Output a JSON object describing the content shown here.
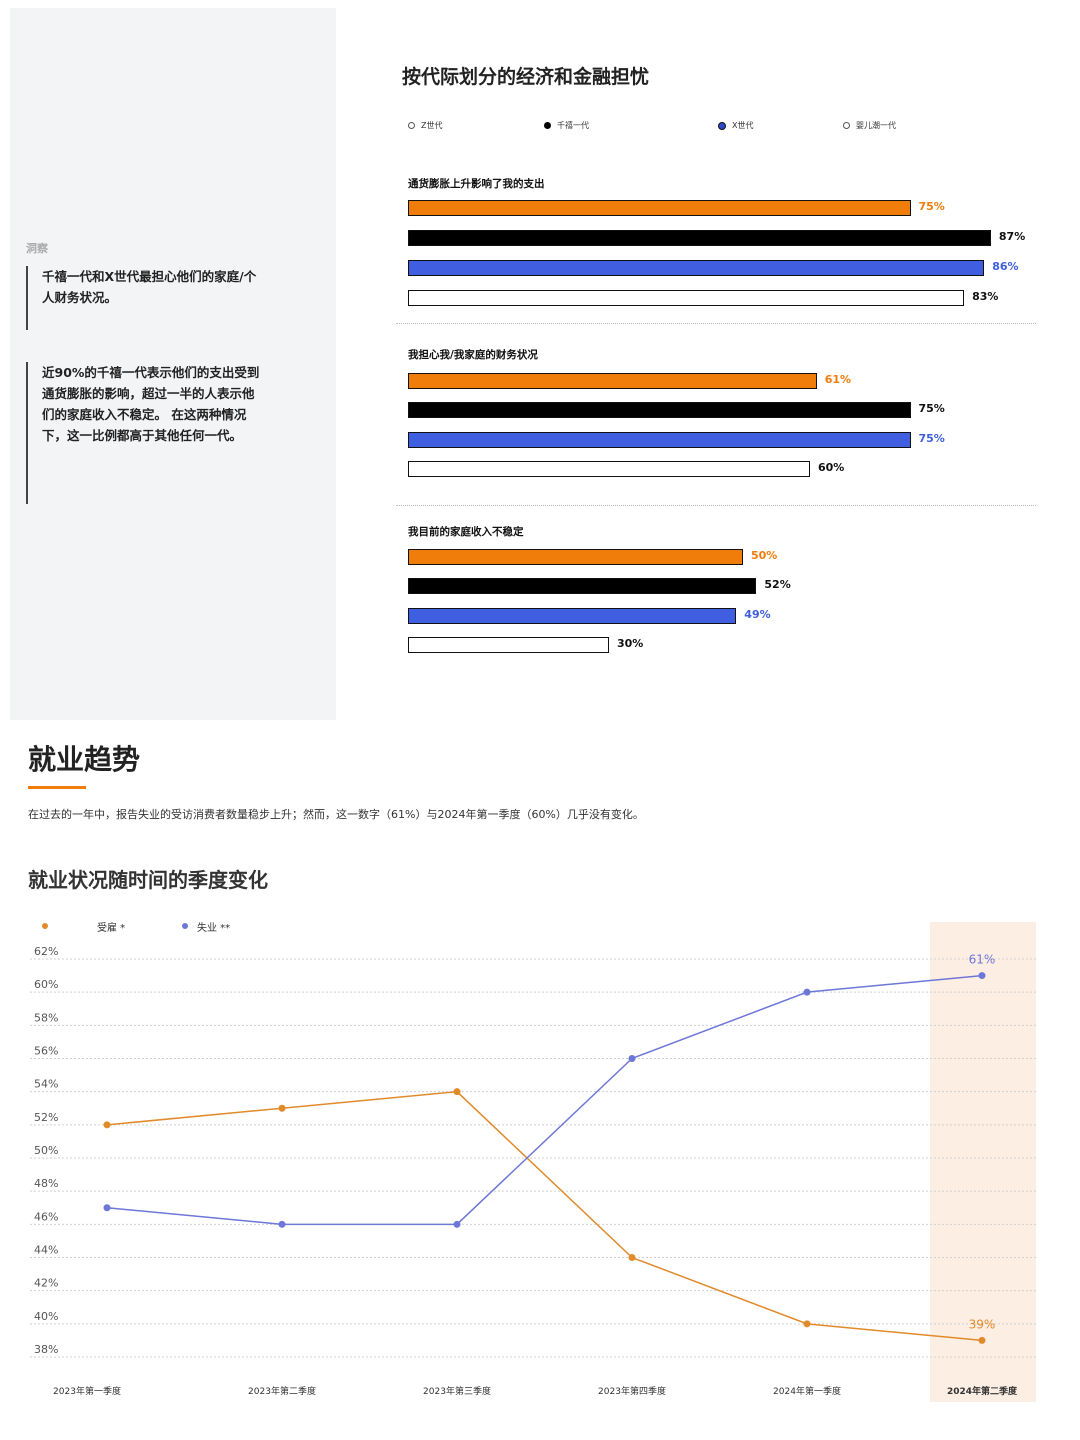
{
  "colors": {
    "gen_z": "#f07c0a",
    "millennial": "#000000",
    "gen_x": "#3f5fe0",
    "boomer": "#ffffff",
    "employed": "#e08a2a",
    "unemployed": "#6d77d8",
    "highlight": "#fdeee3"
  },
  "sidebar": {
    "label": "洞察",
    "quote1": "千禧一代和X世代最担心他们的家庭/个人财务状况。",
    "quote2": "近90%的千禧一代表示他们的支出受到通货膨胀的影响，超过一半的人表示他们的家庭收入不稳定。 在这两种情况下，这一比例都高于其他任何一代。"
  },
  "section": {
    "title": "就业趋势",
    "description": "在过去的一年中，报告失业的受访消费者数量稳步上升；然而，这一数字（61%）与2024年第一季度（60%）几乎没有变化。"
  },
  "chart_data": [
    {
      "type": "bar",
      "title": "按代际划分的经济和金融担忧",
      "legend": [
        "Z世代",
        "千禧一代",
        "X世代",
        "婴儿潮一代"
      ],
      "categories": [
        "通货膨胀上升影响了我的支出",
        "我担心我/我家庭的财务状况",
        "我目前的家庭收入不稳定"
      ],
      "series": [
        {
          "name": "Z世代",
          "values": [
            75,
            61,
            50
          ],
          "labels": [
            "75%",
            "61%",
            "50%"
          ]
        },
        {
          "name": "千禧一代",
          "values": [
            87,
            75,
            52
          ],
          "labels": [
            "87%",
            "75%",
            "52%"
          ]
        },
        {
          "name": "X世代",
          "values": [
            86,
            75,
            49
          ],
          "labels": [
            "86%",
            "75%",
            "49%"
          ]
        },
        {
          "name": "婴儿潮一代",
          "values": [
            83,
            60,
            30
          ],
          "labels": [
            "83%",
            "60%",
            "30%"
          ]
        }
      ]
    },
    {
      "type": "line",
      "title": "就业状况随时间的季度变化",
      "legend": [
        "受雇 *",
        "失业 **"
      ],
      "categories": [
        "2023年第一季度",
        "2023年第二季度",
        "2023年第三季度",
        "2023年第四季度",
        "2024年第一季度",
        "2024年第二季度"
      ],
      "series": [
        {
          "name": "受雇 *",
          "values": [
            52,
            53,
            54,
            44,
            40,
            39
          ]
        },
        {
          "name": "失业 **",
          "values": [
            47,
            46,
            46,
            56,
            60,
            61
          ]
        }
      ],
      "annotations": [
        "61%",
        "39%"
      ],
      "ylim": [
        38,
        62
      ],
      "yticks": [
        "62%",
        "60%",
        "58%",
        "56%",
        "54%",
        "52%",
        "50%",
        "48%",
        "46%",
        "44%",
        "42%",
        "40%",
        "38%"
      ],
      "highlight_category": "2024年第二季度",
      "grid": true,
      "legend_position": "top-left"
    }
  ]
}
